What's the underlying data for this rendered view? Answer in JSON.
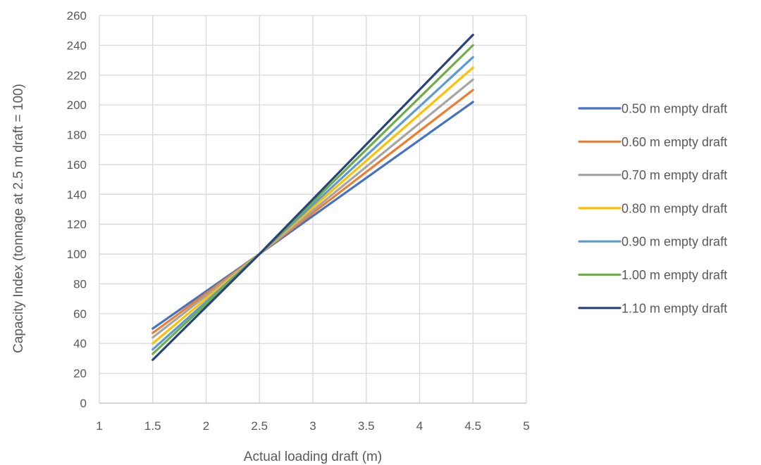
{
  "chart_data": {
    "type": "line",
    "xlabel": "Actual loading draft (m)",
    "ylabel": "Capacity Index (tonnage at 2.5 m draft = 100)",
    "xlim": [
      1,
      5
    ],
    "ylim": [
      0,
      260
    ],
    "x_ticks": [
      "1",
      "1.5",
      "2",
      "2.5",
      "3",
      "3.5",
      "4",
      "4.5",
      "5"
    ],
    "y_ticks": [
      "0",
      "20",
      "40",
      "60",
      "80",
      "100",
      "120",
      "140",
      "160",
      "180",
      "200",
      "220",
      "240",
      "260"
    ],
    "grid": true,
    "legend_position": "right",
    "x": [
      1.5,
      2.5,
      4.5
    ],
    "series": [
      {
        "name": "0.50 m empty draft",
        "color": "#4472C4",
        "values": [
          50,
          100,
          202
        ]
      },
      {
        "name": "0.60 m empty draft",
        "color": "#ED7D31",
        "values": [
          47,
          100,
          210
        ]
      },
      {
        "name": "0.70 m empty draft",
        "color": "#A5A5A5",
        "values": [
          44,
          100,
          217
        ]
      },
      {
        "name": "0.80 m empty draft",
        "color": "#FFC000",
        "values": [
          40,
          100,
          225
        ]
      },
      {
        "name": "0.90 m empty draft",
        "color": "#5B9BD5",
        "values": [
          36,
          100,
          232
        ]
      },
      {
        "name": "1.00 m empty draft",
        "color": "#70AD47",
        "values": [
          33,
          100,
          240
        ]
      },
      {
        "name": "1.10 m empty draft",
        "color": "#264478",
        "values": [
          29,
          100,
          247
        ]
      }
    ]
  }
}
